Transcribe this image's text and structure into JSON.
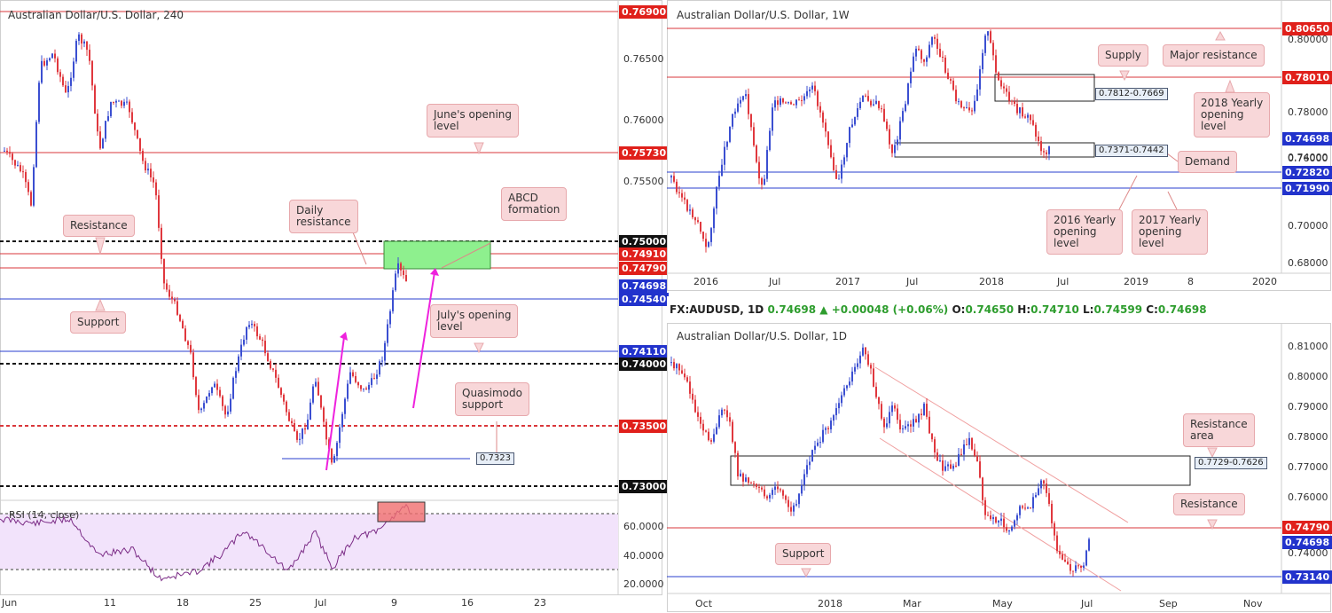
{
  "charts": [
    {
      "id": "h4",
      "title": "Australian Dollar/U.S. Dollar, 240",
      "yticks": [
        "0.76500",
        "0.76000",
        "0.75500",
        "0.74000"
      ],
      "xticks": [
        "Jun",
        "11",
        "18",
        "25",
        "Jul",
        "9",
        "16",
        "23"
      ],
      "price_labels": [
        {
          "text": "0.76900",
          "color": "#e0201b"
        },
        {
          "text": "0.75730",
          "color": "#e0201b"
        },
        {
          "text": "0.75000",
          "color": "#111111"
        },
        {
          "text": "0.74910",
          "color": "#e0201b"
        },
        {
          "text": "0.74790",
          "color": "#e0201b"
        },
        {
          "text": "0.74698",
          "color": "#2233cc"
        },
        {
          "text": "0.74540",
          "color": "#2233cc"
        },
        {
          "text": "0.74110",
          "color": "#2233cc"
        },
        {
          "text": "0.74000",
          "color": "#111111"
        },
        {
          "text": "0.73500",
          "color": "#e0201b"
        },
        {
          "text": "0.73000",
          "color": "#111111"
        }
      ],
      "annotations": {
        "june_open": "June's opening\nlevel",
        "daily_res": "Daily\nresistance",
        "abcd": "ABCD\nformation",
        "resistance": "Resistance",
        "support": "Support",
        "july_open": "July's opening\nlevel",
        "qm": "Quasimodo\nsupport"
      },
      "low_label": "0.7323",
      "rsi_label": "RSI (14, close)",
      "rsi_ticks": [
        "60.0000",
        "40.0000",
        "20.0000"
      ]
    },
    {
      "id": "w1",
      "title": "Australian Dollar/U.S. Dollar, 1W",
      "yticks": [
        "0.80000",
        "0.78000",
        "0.76000",
        "0.74000",
        "0.72000",
        "0.70000",
        "0.68000"
      ],
      "xticks": [
        "2016",
        "Jul",
        "2017",
        "Jul",
        "2018",
        "Jul",
        "2019",
        "8",
        "2020"
      ],
      "price_labels": [
        {
          "text": "0.80650",
          "color": "#e0201b"
        },
        {
          "text": "0.78010",
          "color": "#e0201b"
        },
        {
          "text": "0.74698",
          "color": "#2233cc"
        },
        {
          "text": "0.72820",
          "color": "#2233cc"
        },
        {
          "text": "0.71990",
          "color": "#2233cc"
        }
      ],
      "annotations": {
        "supply": "Supply",
        "major": "Major resistance",
        "y2018": "2018 Yearly\nopening\nlevel",
        "demand": "Demand",
        "y2016": "2016 Yearly\nopening\nlevel",
        "y2017": "2017 Yearly\nopening\nlevel"
      },
      "zone_labels": [
        "0.7812-0.7669",
        "0.7371-0.7442"
      ]
    },
    {
      "id": "d1",
      "title": "Australian Dollar/U.S. Dollar, 1D",
      "yticks": [
        "0.81000",
        "0.80000",
        "0.79000",
        "0.78000",
        "0.77000",
        "0.76000",
        "0.75000",
        "0.74000"
      ],
      "xticks": [
        "Oct",
        "2018",
        "Mar",
        "May",
        "Jul",
        "Sep",
        "Nov"
      ],
      "price_labels": [
        {
          "text": "0.74790",
          "color": "#e0201b"
        },
        {
          "text": "0.74698",
          "color": "#2233cc"
        },
        {
          "text": "0.73140",
          "color": "#2233cc"
        }
      ],
      "annotations": {
        "res_area": "Resistance\narea",
        "resistance": "Resistance",
        "support": "Support"
      },
      "zone_labels": [
        "0.7729-0.7626"
      ],
      "info": {
        "symbol": "FX:AUDUSD, 1D",
        "last": "0.74698",
        "arrow": "▲",
        "change": "+0.00048 (+0.06%)",
        "o_label": "O:",
        "o": "0.74650",
        "h_label": "H:",
        "h": "0.74710",
        "l_label": "L:",
        "l": "0.74599",
        "c_label": "C:",
        "c": "0.74698"
      }
    }
  ],
  "colors": {
    "bull": "#3b4fd1",
    "bear": "#e0383e",
    "red_line": "#d9373b",
    "blue_line": "#2a3fcf",
    "rsi_line": "#7b2c86",
    "rsi_band": "#f2e3fb",
    "green_zone": "#8ef08e",
    "magenta": "#ee22dd"
  }
}
